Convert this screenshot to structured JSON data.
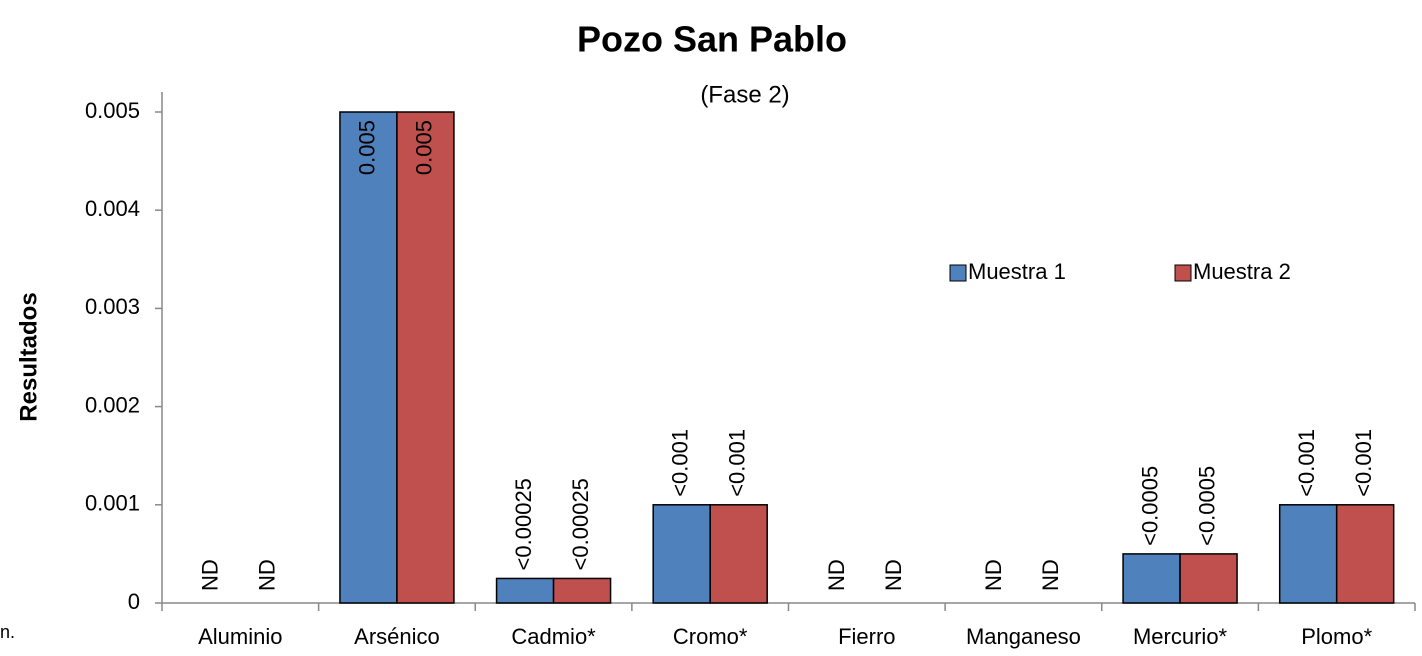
{
  "chart_data": {
    "type": "bar",
    "title": "Pozo San Pablo",
    "subtitle": "(Fase 2)",
    "y_label": "Resultados",
    "side_text": "n.",
    "categories": [
      "Aluminio",
      "Arsénico",
      "Cadmio*",
      "Cromo*",
      "Fierro",
      "Manganeso",
      "Mercurio*",
      "Plomo*"
    ],
    "series": [
      {
        "name": "Muestra 1",
        "color": "#4f81bd",
        "values": [
          null,
          0.005,
          0.00025,
          0.001,
          null,
          null,
          0.0005,
          0.001
        ],
        "value_labels": [
          "ND",
          "0.005",
          "<0.00025",
          "<0.001",
          "ND",
          "ND",
          "<0.0005",
          "<0.001"
        ]
      },
      {
        "name": "Muestra 2",
        "color": "#c0504d",
        "values": [
          null,
          0.005,
          0.00025,
          0.001,
          null,
          null,
          0.0005,
          0.001
        ],
        "value_labels": [
          "ND",
          "0.005",
          "<0.00025",
          "<0.001",
          "ND",
          "ND",
          "<0.0005",
          "<0.001"
        ]
      }
    ],
    "ylim": [
      0,
      0.005
    ],
    "yticks": [
      0,
      0.001,
      0.002,
      0.003,
      0.004,
      0.005
    ],
    "grid": false,
    "legend": "right"
  }
}
